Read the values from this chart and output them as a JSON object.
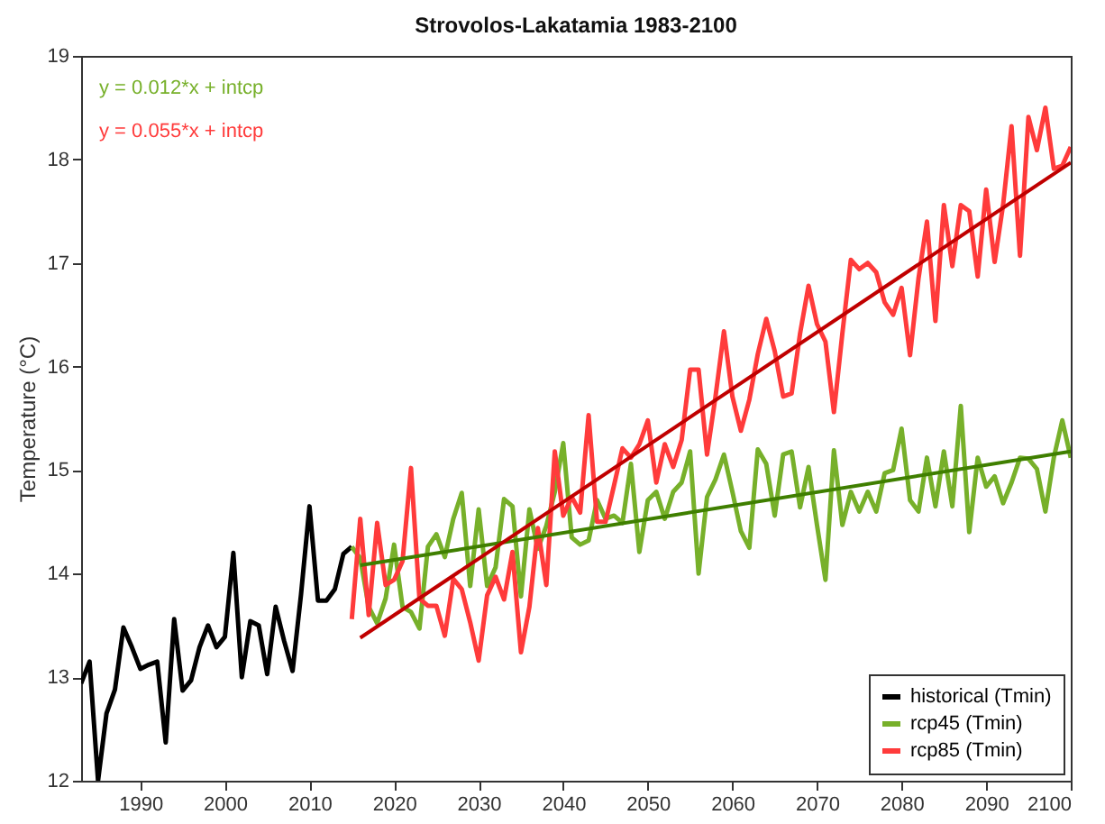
{
  "chart_data": {
    "type": "line",
    "title": "Strovolos-Lakatamia 1983-2100",
    "ylabel": "Temperature (°C)",
    "xlim": [
      1983,
      2100
    ],
    "ylim": [
      12,
      19
    ],
    "xticks": [
      1990,
      2000,
      2010,
      2020,
      2030,
      2040,
      2050,
      2060,
      2070,
      2080,
      2090,
      2100
    ],
    "yticks": [
      12,
      13,
      14,
      15,
      16,
      17,
      18,
      19
    ],
    "grid": false,
    "legend": "bottom right",
    "annotations": [
      "y = 0.012*x + intcp",
      "y = 0.055*x + intcp"
    ],
    "series": [
      {
        "name": "historical (Tmin)",
        "color": "#000000",
        "type": "line",
        "x": [
          1983,
          1984,
          1985,
          1986,
          1987,
          1988,
          1989,
          1990,
          1991,
          1992,
          1993,
          1994,
          1995,
          1996,
          1997,
          1998,
          1999,
          2000,
          2001,
          2002,
          2003,
          2004,
          2005,
          2006,
          2007,
          2008,
          2009,
          2010,
          2011,
          2012,
          2013,
          2014,
          2015
        ],
        "values": [
          12.94,
          13.15,
          12.0,
          12.65,
          12.88,
          13.48,
          13.29,
          13.08,
          13.12,
          13.15,
          12.37,
          13.56,
          12.87,
          12.97,
          13.29,
          13.5,
          13.29,
          13.39,
          14.2,
          13.0,
          13.54,
          13.5,
          13.03,
          13.68,
          13.35,
          13.06,
          13.8,
          14.65,
          13.74,
          13.74,
          13.85,
          14.19,
          14.26
        ]
      },
      {
        "name": "rcp45 (Tmin)",
        "color": "#77b02a",
        "type": "line",
        "x": [
          2015,
          2016,
          2017,
          2018,
          2019,
          2020,
          2021,
          2022,
          2023,
          2024,
          2025,
          2026,
          2027,
          2028,
          2029,
          2030,
          2031,
          2032,
          2033,
          2034,
          2035,
          2036,
          2037,
          2038,
          2039,
          2040,
          2041,
          2042,
          2043,
          2044,
          2045,
          2046,
          2047,
          2048,
          2049,
          2050,
          2051,
          2052,
          2053,
          2054,
          2055,
          2056,
          2057,
          2058,
          2059,
          2060,
          2061,
          2062,
          2063,
          2064,
          2065,
          2066,
          2067,
          2068,
          2069,
          2070,
          2071,
          2072,
          2073,
          2074,
          2075,
          2076,
          2077,
          2078,
          2079,
          2080,
          2081,
          2082,
          2083,
          2084,
          2085,
          2086,
          2087,
          2088,
          2089,
          2090,
          2091,
          2092,
          2093,
          2094,
          2095,
          2096,
          2097,
          2098,
          2099,
          2100
        ],
        "values": [
          14.26,
          14.15,
          13.68,
          13.52,
          13.76,
          14.28,
          13.68,
          13.63,
          13.47,
          14.26,
          14.38,
          14.16,
          14.53,
          14.78,
          13.88,
          14.62,
          13.88,
          14.06,
          14.72,
          14.65,
          13.78,
          14.62,
          14.24,
          14.46,
          14.79,
          15.26,
          14.35,
          14.28,
          14.32,
          14.71,
          14.53,
          14.56,
          14.49,
          15.06,
          14.21,
          14.71,
          14.79,
          14.53,
          14.79,
          14.88,
          15.18,
          14.0,
          14.74,
          14.91,
          15.15,
          14.79,
          14.41,
          14.25,
          15.2,
          15.06,
          14.56,
          15.15,
          15.18,
          14.64,
          15.03,
          14.47,
          13.94,
          15.19,
          14.47,
          14.79,
          14.6,
          14.79,
          14.6,
          14.97,
          15.0,
          15.4,
          14.71,
          14.6,
          15.12,
          14.65,
          15.18,
          14.65,
          15.62,
          14.4,
          15.12,
          14.84,
          14.94,
          14.68,
          14.88,
          15.12,
          15.11,
          15.01,
          14.6,
          15.12,
          15.48,
          15.12
        ]
      },
      {
        "name": "rcp85 (Tmin)",
        "color": "#ff3b3b",
        "type": "line",
        "x": [
          2015,
          2016,
          2017,
          2018,
          2019,
          2020,
          2021,
          2022,
          2023,
          2024,
          2025,
          2026,
          2027,
          2028,
          2029,
          2030,
          2031,
          2032,
          2033,
          2034,
          2035,
          2036,
          2037,
          2038,
          2039,
          2040,
          2041,
          2042,
          2043,
          2044,
          2045,
          2046,
          2047,
          2048,
          2049,
          2050,
          2051,
          2052,
          2053,
          2054,
          2055,
          2056,
          2057,
          2058,
          2059,
          2060,
          2061,
          2062,
          2063,
          2064,
          2065,
          2066,
          2067,
          2068,
          2069,
          2070,
          2071,
          2072,
          2073,
          2074,
          2075,
          2076,
          2077,
          2078,
          2079,
          2080,
          2081,
          2082,
          2083,
          2084,
          2085,
          2086,
          2087,
          2088,
          2089,
          2090,
          2091,
          2092,
          2093,
          2094,
          2095,
          2096,
          2097,
          2098,
          2099,
          2100
        ],
        "values": [
          13.56,
          14.53,
          13.6,
          14.49,
          13.89,
          13.94,
          14.12,
          15.02,
          13.76,
          13.69,
          13.69,
          13.4,
          13.95,
          13.85,
          13.53,
          13.16,
          13.79,
          13.97,
          13.75,
          14.21,
          13.24,
          13.68,
          14.44,
          13.89,
          15.18,
          14.56,
          14.74,
          14.59,
          15.53,
          14.5,
          14.5,
          14.85,
          15.21,
          15.12,
          15.25,
          15.48,
          14.88,
          15.25,
          15.03,
          15.29,
          15.97,
          15.97,
          15.15,
          15.71,
          16.34,
          15.71,
          15.38,
          15.68,
          16.12,
          16.46,
          16.15,
          15.71,
          15.74,
          16.32,
          16.78,
          16.41,
          16.24,
          15.56,
          16.32,
          17.03,
          16.94,
          17.0,
          16.91,
          16.62,
          16.5,
          16.76,
          16.11,
          16.85,
          17.4,
          16.44,
          17.56,
          16.97,
          17.56,
          17.5,
          16.87,
          17.71,
          17.01,
          17.56,
          18.32,
          17.07,
          18.41,
          18.09,
          18.5,
          17.91,
          17.94,
          18.12
        ]
      },
      {
        "color": "#3f7f00",
        "type": "line",
        "x": [
          2016,
          2100
        ],
        "values": [
          14.08,
          15.18
        ]
      },
      {
        "color": "#c00000",
        "type": "line",
        "x": [
          2016,
          2100
        ],
        "values": [
          13.38,
          17.97
        ]
      }
    ]
  }
}
